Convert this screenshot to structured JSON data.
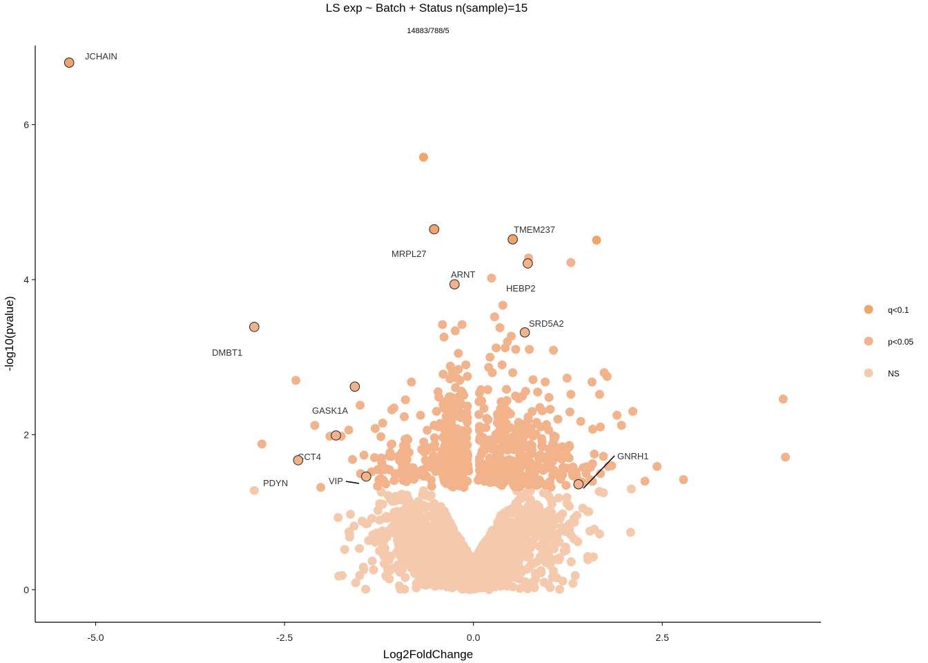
{
  "chart_data": {
    "type": "scatter",
    "title": "LS exp ~ Batch + Status n(sample)=15",
    "subtitle": "14883/788/5",
    "xlabel": "Log2FoldChange",
    "ylabel": "-log10(pvalue)",
    "xlim": [
      -5.8,
      4.6
    ],
    "ylim": [
      -0.42,
      7.02
    ],
    "x_ticks": [
      -5.0,
      -2.5,
      0.0,
      2.5
    ],
    "x_tick_labels": [
      "-5.0",
      "-2.5",
      "0.0",
      "2.5"
    ],
    "y_ticks": [
      0,
      2,
      4,
      6
    ],
    "y_tick_labels": [
      "0",
      "2",
      "4",
      "6"
    ],
    "grid": false,
    "legend_position": "right",
    "legend": [
      {
        "key": "q",
        "label": "q<0.1",
        "color": "#f0a468"
      },
      {
        "key": "p",
        "label": "p<0.05",
        "color": "#f3b38a"
      },
      {
        "key": "ns",
        "label": "NS",
        "color": "#f5c9ab"
      }
    ],
    "labeled_genes": [
      {
        "gene": "JCHAIN",
        "x": -5.35,
        "y": 6.8,
        "class": "q"
      },
      {
        "gene": "MRPL27",
        "x": -0.52,
        "y": 4.65,
        "class": "q"
      },
      {
        "gene": "TMEM237",
        "x": 0.52,
        "y": 4.52,
        "class": "q"
      },
      {
        "gene": "HEBP2",
        "x": 0.72,
        "y": 4.21,
        "class": "p"
      },
      {
        "gene": "ARNT",
        "x": -0.25,
        "y": 3.94,
        "class": "p"
      },
      {
        "gene": "DMBT1",
        "x": -2.9,
        "y": 3.39,
        "class": "p"
      },
      {
        "gene": "SRD5A2",
        "x": 0.68,
        "y": 3.32,
        "class": "p"
      },
      {
        "gene": "GASK1A",
        "x": -1.57,
        "y": 2.62,
        "class": "p"
      },
      {
        "gene": "CCT4",
        "x": -1.82,
        "y": 1.99,
        "class": "p"
      },
      {
        "gene": "PDYN",
        "x": -2.32,
        "y": 1.67,
        "class": "p"
      },
      {
        "gene": "VIP",
        "x": -1.42,
        "y": 1.46,
        "class": "p"
      },
      {
        "gene": "GNRH1",
        "x": 1.39,
        "y": 1.36,
        "class": "p"
      }
    ],
    "other_points": [
      {
        "x": -0.66,
        "y": 5.58,
        "class": "q"
      },
      {
        "x": 1.63,
        "y": 4.51,
        "class": "q"
      },
      {
        "x": 0.73,
        "y": 4.28,
        "class": "p"
      },
      {
        "x": 1.29,
        "y": 4.22,
        "class": "p"
      },
      {
        "x": 0.24,
        "y": 4.02,
        "class": "p"
      },
      {
        "x": 0.39,
        "y": 3.67,
        "class": "p"
      },
      {
        "x": 0.28,
        "y": 3.52,
        "class": "p"
      },
      {
        "x": -0.41,
        "y": 3.42,
        "class": "p"
      },
      {
        "x": -0.15,
        "y": 3.42,
        "class": "p"
      },
      {
        "x": -0.24,
        "y": 3.34,
        "class": "p"
      },
      {
        "x": -0.39,
        "y": 3.26,
        "class": "p"
      },
      {
        "x": 0.35,
        "y": 3.38,
        "class": "p"
      },
      {
        "x": 0.5,
        "y": 3.27,
        "class": "p"
      },
      {
        "x": 0.45,
        "y": 3.2,
        "class": "p"
      },
      {
        "x": 0.42,
        "y": 3.12,
        "class": "p"
      },
      {
        "x": 0.3,
        "y": 3.12,
        "class": "p"
      },
      {
        "x": 0.56,
        "y": 3.1,
        "class": "p"
      },
      {
        "x": 0.74,
        "y": 3.1,
        "class": "p"
      },
      {
        "x": 1.06,
        "y": 3.09,
        "class": "p"
      },
      {
        "x": -0.2,
        "y": 3.05,
        "class": "p"
      },
      {
        "x": 0.22,
        "y": 3.0,
        "class": "p"
      },
      {
        "x": -0.1,
        "y": 2.9,
        "class": "p"
      },
      {
        "x": 0.38,
        "y": 2.9,
        "class": "p"
      },
      {
        "x": 0.25,
        "y": 2.8,
        "class": "p"
      },
      {
        "x": -0.4,
        "y": 2.78,
        "class": "p"
      },
      {
        "x": 0.52,
        "y": 2.8,
        "class": "p"
      },
      {
        "x": -0.31,
        "y": 2.72,
        "class": "p"
      },
      {
        "x": -0.18,
        "y": 2.7,
        "class": "p"
      },
      {
        "x": -0.82,
        "y": 2.68,
        "class": "p"
      },
      {
        "x": -2.35,
        "y": 2.7,
        "class": "p"
      },
      {
        "x": 0.95,
        "y": 2.68,
        "class": "p"
      },
      {
        "x": 1.24,
        "y": 2.73,
        "class": "p"
      },
      {
        "x": 1.57,
        "y": 2.68,
        "class": "p"
      },
      {
        "x": 1.73,
        "y": 2.8,
        "class": "p"
      },
      {
        "x": 1.77,
        "y": 2.75,
        "class": "p"
      },
      {
        "x": 1.29,
        "y": 2.52,
        "class": "p"
      },
      {
        "x": 1.67,
        "y": 2.52,
        "class": "p"
      },
      {
        "x": 0.1,
        "y": 2.58,
        "class": "p"
      },
      {
        "x": 0.19,
        "y": 2.58,
        "class": "p"
      },
      {
        "x": 0.69,
        "y": 2.56,
        "class": "p"
      },
      {
        "x": 0.85,
        "y": 2.55,
        "class": "p"
      },
      {
        "x": 1.0,
        "y": 2.48,
        "class": "p"
      },
      {
        "x": -0.9,
        "y": 2.45,
        "class": "p"
      },
      {
        "x": -1.5,
        "y": 2.38,
        "class": "p"
      },
      {
        "x": -0.7,
        "y": 2.25,
        "class": "p"
      },
      {
        "x": -1.08,
        "y": 2.32,
        "class": "p"
      },
      {
        "x": 2.11,
        "y": 2.3,
        "class": "p"
      },
      {
        "x": 1.9,
        "y": 2.25,
        "class": "p"
      },
      {
        "x": 4.1,
        "y": 2.46,
        "class": "p"
      },
      {
        "x": -2.1,
        "y": 2.12,
        "class": "p"
      },
      {
        "x": -1.2,
        "y": 2.15,
        "class": "p"
      },
      {
        "x": -1.65,
        "y": 2.06,
        "class": "p"
      },
      {
        "x": -1.3,
        "y": 2.08,
        "class": "p"
      },
      {
        "x": -0.52,
        "y": 2.12,
        "class": "p"
      },
      {
        "x": 1.96,
        "y": 2.12,
        "class": "p"
      },
      {
        "x": 1.58,
        "y": 2.07,
        "class": "p"
      },
      {
        "x": 1.68,
        "y": 2.1,
        "class": "p"
      },
      {
        "x": -1.75,
        "y": 1.98,
        "class": "p"
      },
      {
        "x": -1.9,
        "y": 1.98,
        "class": "p"
      },
      {
        "x": -0.88,
        "y": 1.95,
        "class": "p"
      },
      {
        "x": -1.08,
        "y": 1.88,
        "class": "p"
      },
      {
        "x": -0.62,
        "y": 1.8,
        "class": "p"
      },
      {
        "x": -2.8,
        "y": 1.88,
        "class": "p"
      },
      {
        "x": -1.0,
        "y": 1.72,
        "class": "p"
      },
      {
        "x": -1.22,
        "y": 1.7,
        "class": "p"
      },
      {
        "x": -0.45,
        "y": 1.6,
        "class": "p"
      },
      {
        "x": -1.6,
        "y": 1.68,
        "class": "p"
      },
      {
        "x": 1.23,
        "y": 1.8,
        "class": "p"
      },
      {
        "x": 1.6,
        "y": 1.75,
        "class": "p"
      },
      {
        "x": 1.72,
        "y": 1.72,
        "class": "p"
      },
      {
        "x": 1.83,
        "y": 1.6,
        "class": "p"
      },
      {
        "x": 1.55,
        "y": 1.58,
        "class": "p"
      },
      {
        "x": 4.13,
        "y": 1.71,
        "class": "p"
      },
      {
        "x": 2.43,
        "y": 1.59,
        "class": "p"
      },
      {
        "x": 2.78,
        "y": 1.42,
        "class": "p"
      },
      {
        "x": 2.27,
        "y": 1.4,
        "class": "p"
      },
      {
        "x": 1.49,
        "y": 1.5,
        "class": "p"
      },
      {
        "x": 1.38,
        "y": 1.42,
        "class": "p"
      },
      {
        "x": -1.35,
        "y": 1.52,
        "class": "p"
      },
      {
        "x": -1.25,
        "y": 1.42,
        "class": "p"
      },
      {
        "x": -2.02,
        "y": 1.32,
        "class": "p"
      },
      {
        "x": 2.09,
        "y": 1.3,
        "class": "ns"
      },
      {
        "x": 1.72,
        "y": 1.25,
        "class": "ns"
      },
      {
        "x": -2.9,
        "y": 1.28,
        "class": "ns"
      },
      {
        "x": 1.51,
        "y": 1.01,
        "class": "ns"
      },
      {
        "x": 2.08,
        "y": 0.74,
        "class": "ns"
      },
      {
        "x": 1.67,
        "y": 0.72,
        "class": "ns"
      },
      {
        "x": 1.6,
        "y": 0.78,
        "class": "ns"
      },
      {
        "x": 1.38,
        "y": 0.62,
        "class": "ns"
      },
      {
        "x": 1.22,
        "y": 0.55,
        "class": "ns"
      },
      {
        "x": -1.28,
        "y": 0.68,
        "class": "ns"
      },
      {
        "x": -1.42,
        "y": 0.85,
        "class": "ns"
      },
      {
        "x": -1.58,
        "y": 0.82,
        "class": "ns"
      },
      {
        "x": -0.98,
        "y": 0.9,
        "class": "ns"
      },
      {
        "x": -1.0,
        "y": 0.32,
        "class": "ns"
      },
      {
        "x": 0.96,
        "y": 0.35,
        "class": "ns"
      },
      {
        "x": 1.22,
        "y": 0.75,
        "class": "ns"
      },
      {
        "x": 1.18,
        "y": 0.98,
        "class": "ns"
      }
    ],
    "clusters": [
      {
        "class": "p",
        "cx": -0.28,
        "cy": 1.72,
        "sx": 0.1,
        "sy": 0.4,
        "n": 150
      },
      {
        "class": "p",
        "cx": 0.4,
        "cy": 1.75,
        "sx": 0.35,
        "sy": 0.4,
        "n": 240
      },
      {
        "class": "p",
        "cx": 0.95,
        "cy": 1.65,
        "sx": 0.35,
        "sy": 0.3,
        "n": 90
      },
      {
        "class": "p",
        "cx": -0.85,
        "cy": 1.6,
        "sx": 0.4,
        "sy": 0.3,
        "n": 85
      },
      {
        "class": "p",
        "cx": -0.3,
        "cy": 2.3,
        "sx": 0.08,
        "sy": 0.35,
        "n": 40
      },
      {
        "class": "ns",
        "cx": -0.05,
        "cy": 0.55,
        "sx": 0.5,
        "sy": 0.33,
        "n": 700
      },
      {
        "class": "ns",
        "cx": 0.55,
        "cy": 0.7,
        "sx": 0.45,
        "sy": 0.3,
        "n": 300
      },
      {
        "class": "ns",
        "cx": -0.65,
        "cy": 0.7,
        "sx": 0.4,
        "sy": 0.3,
        "n": 300
      }
    ]
  }
}
